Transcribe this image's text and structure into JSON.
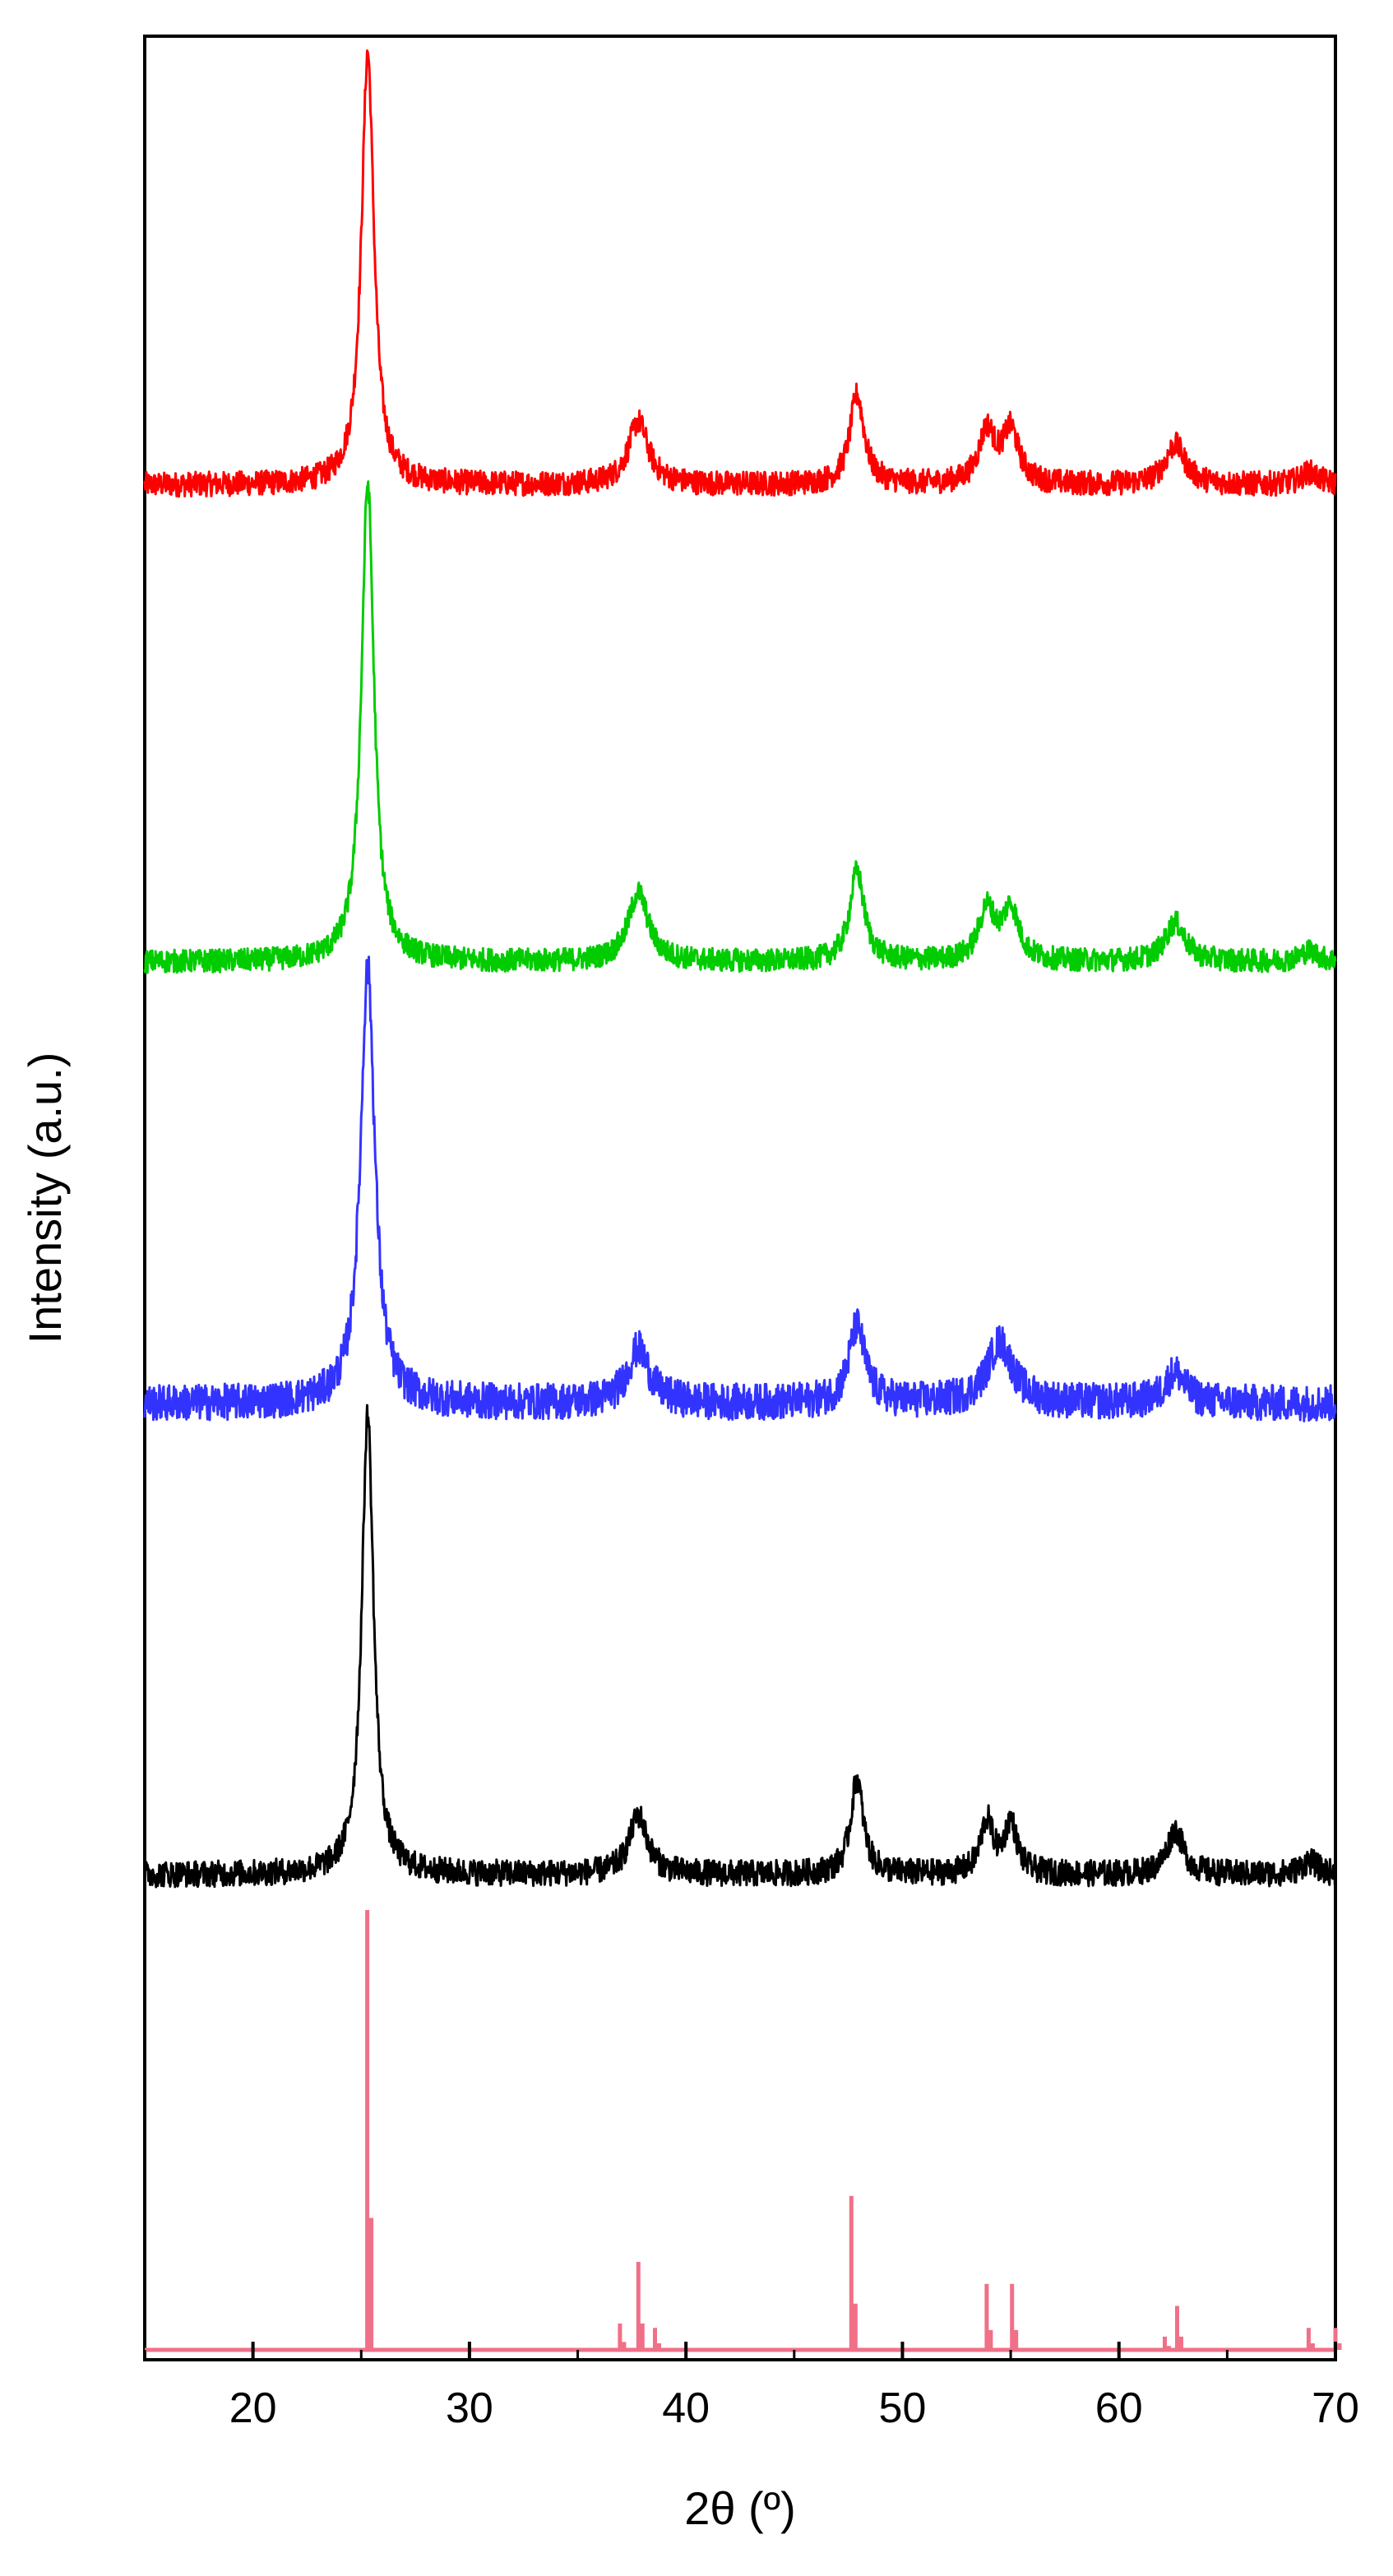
{
  "chart_data": {
    "type": "line",
    "xlabel": "2θ (º)",
    "ylabel": "Intensity (a.u.)",
    "xlim": [
      15,
      70
    ],
    "xticks": [
      20,
      30,
      40,
      50,
      60,
      70
    ],
    "y_ticks_shown": false,
    "grid": false,
    "legend": "none",
    "stacked_offset": true,
    "series": [
      {
        "color": "#ff0000",
        "baseline": 0.0,
        "noise": 0.016,
        "peaks": [
          {
            "x": 25.3,
            "h": 0.56,
            "w": 0.35
          },
          {
            "x": 37.8,
            "h": 0.082,
            "w": 0.55
          },
          {
            "x": 47.9,
            "h": 0.116,
            "w": 0.4
          },
          {
            "x": 53.9,
            "h": 0.068,
            "w": 0.45
          },
          {
            "x": 55.0,
            "h": 0.068,
            "w": 0.45
          },
          {
            "x": 62.6,
            "h": 0.052,
            "w": 0.55
          },
          {
            "x": 68.8,
            "h": 0.016,
            "w": 0.5
          }
        ]
      },
      {
        "color": "#00cc00",
        "baseline": 0.0,
        "noise": 0.013,
        "peaks": [
          {
            "x": 25.3,
            "h": 0.54,
            "w": 0.35
          },
          {
            "x": 37.8,
            "h": 0.078,
            "w": 0.55
          },
          {
            "x": 47.9,
            "h": 0.102,
            "w": 0.4
          },
          {
            "x": 53.9,
            "h": 0.058,
            "w": 0.45
          },
          {
            "x": 55.0,
            "h": 0.058,
            "w": 0.45
          },
          {
            "x": 62.6,
            "h": 0.044,
            "w": 0.55
          },
          {
            "x": 68.8,
            "h": 0.012,
            "w": 0.5
          }
        ]
      },
      {
        "color": "#3333ff",
        "baseline": 0.0,
        "noise": 0.022,
        "peaks": [
          {
            "x": 25.3,
            "h": 0.53,
            "w": 0.4
          },
          {
            "x": 37.8,
            "h": 0.066,
            "w": 0.6
          },
          {
            "x": 47.9,
            "h": 0.094,
            "w": 0.45
          },
          {
            "x": 54.5,
            "h": 0.074,
            "w": 0.7
          },
          {
            "x": 62.6,
            "h": 0.038,
            "w": 0.55
          }
        ]
      },
      {
        "color": "#000000",
        "baseline": 0.0,
        "noise": 0.016,
        "peaks": [
          {
            "x": 25.3,
            "h": 0.56,
            "w": 0.33
          },
          {
            "x": 37.8,
            "h": 0.072,
            "w": 0.5
          },
          {
            "x": 47.9,
            "h": 0.116,
            "w": 0.35
          },
          {
            "x": 53.9,
            "h": 0.064,
            "w": 0.35
          },
          {
            "x": 55.0,
            "h": 0.062,
            "w": 0.35
          },
          {
            "x": 62.6,
            "h": 0.054,
            "w": 0.45
          },
          {
            "x": 68.8,
            "h": 0.016,
            "w": 0.45
          }
        ]
      },
      {
        "color": "#f07088",
        "type": "reference-sticks",
        "sticks": [
          {
            "x": 25.28,
            "h": 1.0
          },
          {
            "x": 36.95,
            "h": 0.06
          },
          {
            "x": 37.8,
            "h": 0.2
          },
          {
            "x": 38.57,
            "h": 0.05
          },
          {
            "x": 47.64,
            "h": 0.35
          },
          {
            "x": 53.89,
            "h": 0.15
          },
          {
            "x": 55.06,
            "h": 0.15
          },
          {
            "x": 62.12,
            "h": 0.03
          },
          {
            "x": 62.69,
            "h": 0.1
          },
          {
            "x": 68.76,
            "h": 0.05
          },
          {
            "x": 70.0,
            "h": 0.05
          }
        ]
      }
    ]
  }
}
